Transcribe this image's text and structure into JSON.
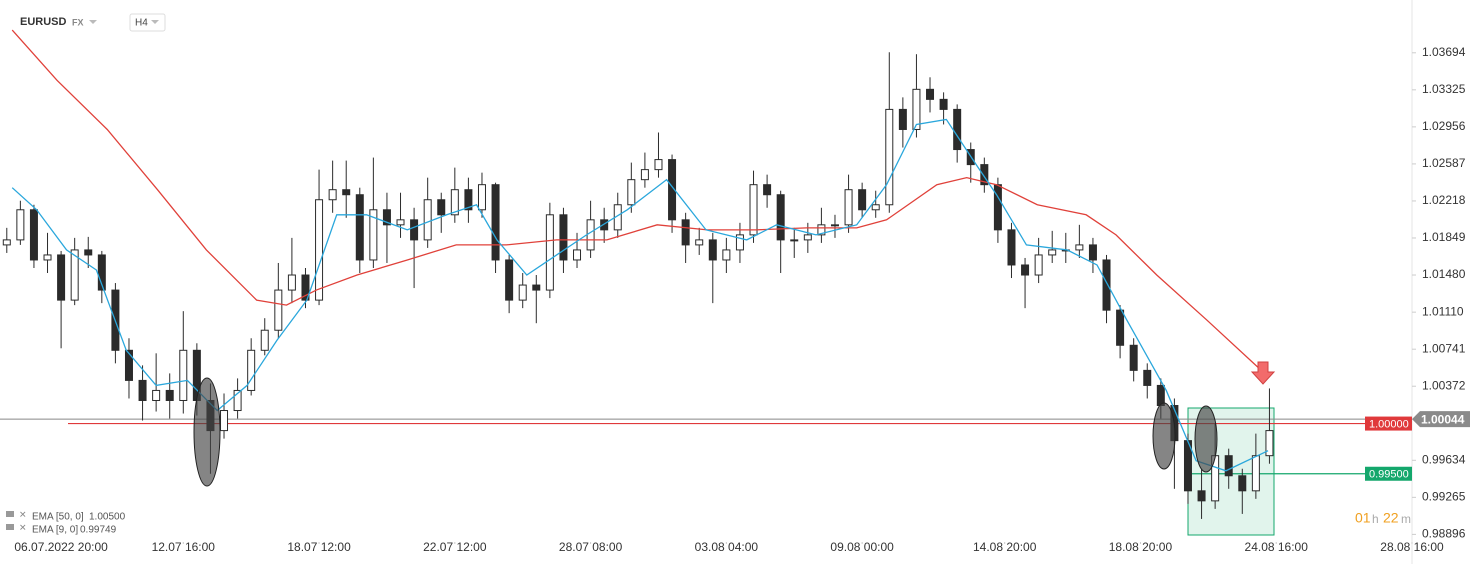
{
  "header": {
    "symbol": "EURUSD",
    "market": "FX",
    "interval": "H4"
  },
  "chart_data": {
    "type": "candlestick",
    "up_color": "#ffffff",
    "down_color": "#2b2b2b",
    "wick_color": "#2b2b2b",
    "x": [
      0,
      1,
      2,
      3,
      4,
      5,
      6,
      7,
      8,
      9,
      10,
      11,
      12,
      13,
      14,
      15,
      16,
      17,
      18,
      19,
      20,
      21,
      22,
      23,
      24,
      25,
      26,
      27,
      28,
      29,
      30,
      31,
      32,
      33,
      34,
      35,
      36,
      37,
      38,
      39,
      40,
      41,
      42,
      43,
      44,
      45,
      46,
      47,
      48,
      49,
      50,
      51,
      52,
      53,
      54,
      55,
      56,
      57,
      58,
      59,
      60,
      61,
      62,
      63,
      64,
      65,
      66,
      67,
      68,
      69,
      70,
      71,
      72,
      73,
      74,
      75,
      76,
      77,
      78,
      79,
      80,
      81,
      82,
      83,
      84,
      85,
      86,
      87,
      88,
      89,
      90,
      91,
      92,
      93
    ],
    "open": [
      1.0178,
      1.0183,
      1.0213,
      1.0163,
      1.0168,
      1.0123,
      1.0173,
      1.0168,
      1.0133,
      1.0073,
      1.0043,
      1.0023,
      1.0033,
      1.0023,
      1.0073,
      1.0023,
      0.9993,
      1.0013,
      1.0033,
      1.0073,
      1.0093,
      1.0133,
      1.0148,
      1.0123,
      1.0223,
      1.0233,
      1.0228,
      1.0163,
      1.0213,
      1.0198,
      1.0203,
      1.0183,
      1.0223,
      1.0208,
      1.0233,
      1.0213,
      1.0238,
      1.0163,
      1.0123,
      1.0138,
      1.0133,
      1.0208,
      1.0163,
      1.0173,
      1.0203,
      1.0193,
      1.0218,
      1.0243,
      1.0253,
      1.0263,
      1.0203,
      1.0178,
      1.0183,
      1.0163,
      1.0173,
      1.0188,
      1.0238,
      1.0228,
      1.0183,
      1.0183,
      1.0188,
      1.0198,
      1.0198,
      1.0233,
      1.0213,
      1.0218,
      1.0313,
      1.0293,
      1.0333,
      1.0323,
      1.0313,
      1.0273,
      1.0258,
      1.0238,
      1.0193,
      1.0158,
      1.0148,
      1.0168,
      1.0173,
      1.0173,
      1.0178,
      1.0163,
      1.0113,
      1.0078,
      1.0053,
      1.0038,
      1.0018,
      0.9983,
      0.9933,
      0.9923,
      0.9968,
      0.9948,
      0.9933,
      0.9968
    ],
    "high": [
      1.0195,
      1.0222,
      1.0218,
      1.019,
      1.0172,
      1.0185,
      1.0186,
      1.0172,
      1.014,
      1.0085,
      1.0058,
      1.007,
      1.005,
      1.0112,
      1.008,
      1.004,
      1.003,
      1.0045,
      1.0085,
      1.0105,
      1.016,
      1.0185,
      1.0155,
      1.0253,
      1.0262,
      1.0262,
      1.0235,
      1.0265,
      1.023,
      1.023,
      1.0215,
      1.0245,
      1.023,
      1.0255,
      1.0245,
      1.025,
      1.024,
      1.0168,
      1.015,
      1.0148,
      1.022,
      1.0215,
      1.019,
      1.0222,
      1.0215,
      1.023,
      1.026,
      1.027,
      1.029,
      1.0268,
      1.021,
      1.0195,
      1.019,
      1.0185,
      1.02,
      1.0252,
      1.0248,
      1.0232,
      1.0195,
      1.02,
      1.0215,
      1.0208,
      1.0248,
      1.024,
      1.0232,
      1.037,
      1.0325,
      1.0368,
      1.0345,
      1.033,
      1.0318,
      1.028,
      1.0265,
      1.0245,
      1.02,
      1.0165,
      1.0185,
      1.0192,
      1.019,
      1.0198,
      1.0185,
      1.0168,
      1.0118,
      1.0085,
      1.006,
      1.0045,
      1.0025,
      0.999,
      0.9955,
      1.0,
      0.9975,
      0.9955,
      0.999,
      1.0035
    ],
    "low": [
      1.017,
      1.0178,
      1.0155,
      1.015,
      1.0075,
      1.0118,
      1.0155,
      1.012,
      1.006,
      1.0025,
      1.0003,
      1.0012,
      1.0005,
      1.001,
      1.0008,
      0.995,
      0.9985,
      1.0005,
      1.0028,
      1.0068,
      1.0085,
      1.012,
      1.0115,
      1.0118,
      1.021,
      1.0205,
      1.015,
      1.0155,
      1.016,
      1.0185,
      1.0135,
      1.0175,
      1.019,
      1.02,
      1.02,
      1.0205,
      1.015,
      1.011,
      1.0115,
      1.01,
      1.0125,
      1.015,
      1.0155,
      1.0165,
      1.018,
      1.0185,
      1.021,
      1.0235,
      1.0245,
      1.019,
      1.016,
      1.0168,
      1.012,
      1.015,
      1.016,
      1.018,
      1.0215,
      1.015,
      1.0165,
      1.017,
      1.018,
      1.0185,
      1.019,
      1.0205,
      1.0205,
      1.021,
      1.0275,
      1.0285,
      1.031,
      1.0298,
      1.026,
      1.024,
      1.023,
      1.018,
      1.0145,
      1.0115,
      1.014,
      1.016,
      1.016,
      1.0165,
      1.015,
      1.01,
      1.0065,
      1.0042,
      1.0025,
      1.0005,
      0.9935,
      0.992,
      0.9905,
      0.9915,
      0.9935,
      0.991,
      0.9925,
      0.996
    ],
    "close": [
      1.0183,
      1.0213,
      1.0163,
      1.0168,
      1.0123,
      1.0173,
      1.0168,
      1.0133,
      1.0073,
      1.0043,
      1.0023,
      1.0033,
      1.0023,
      1.0073,
      1.0023,
      0.9993,
      1.0013,
      1.0033,
      1.0073,
      1.0093,
      1.0133,
      1.0148,
      1.0123,
      1.0223,
      1.0233,
      1.0228,
      1.0163,
      1.0213,
      1.0198,
      1.0203,
      1.0183,
      1.0223,
      1.0208,
      1.0233,
      1.0213,
      1.0238,
      1.0163,
      1.0123,
      1.0138,
      1.0133,
      1.0208,
      1.0163,
      1.0173,
      1.0203,
      1.0193,
      1.0218,
      1.0243,
      1.0253,
      1.0263,
      1.0203,
      1.0178,
      1.0183,
      1.0163,
      1.0173,
      1.0188,
      1.0238,
      1.0228,
      1.0183,
      1.0183,
      1.0188,
      1.0198,
      1.0198,
      1.0233,
      1.0213,
      1.0218,
      1.0313,
      1.0293,
      1.0333,
      1.0323,
      1.0313,
      1.0273,
      1.0258,
      1.0238,
      1.0193,
      1.0158,
      1.0148,
      1.0168,
      1.0173,
      1.0173,
      1.0178,
      1.0163,
      1.0113,
      1.0078,
      1.0053,
      1.0038,
      1.0018,
      0.9983,
      0.9933,
      0.9923,
      0.9968,
      0.9948,
      0.9933,
      0.9968,
      0.9993
    ],
    "series": [
      {
        "name": "EMA [50, 0]",
        "legend_value": "1.00500",
        "color": "#e0413a",
        "x": [
          0.4,
          3.7,
          7.4,
          11.1,
          14.7,
          18.4,
          20.6,
          22.8,
          25.8,
          29.5,
          33.1,
          36.8,
          40.5,
          44.2,
          47.9,
          51.6,
          55.2,
          58.9,
          62.6,
          64.8,
          68.5,
          70.7,
          72.9,
          75.9,
          79.5,
          81.7,
          84.7,
          88.4,
          92.8
        ],
        "values": [
          1.0392,
          1.0342,
          1.0293,
          1.0233,
          1.0173,
          1.0123,
          1.0118,
          1.0133,
          1.0148,
          1.0163,
          1.0178,
          1.0178,
          1.0183,
          1.0183,
          1.0198,
          1.0193,
          1.0193,
          1.0195,
          1.0195,
          1.0203,
          1.0238,
          1.0245,
          1.0238,
          1.0218,
          1.0208,
          1.0188,
          1.0148,
          1.0103,
          1.0048
        ]
      },
      {
        "name": "EMA [9, 0]",
        "legend_value": "0.99749",
        "color": "#2aa7dc",
        "x": [
          0.4,
          2.2,
          4.4,
          6.6,
          8.8,
          11.0,
          13.3,
          15.5,
          17.7,
          19.9,
          22.1,
          24.3,
          26.5,
          29.5,
          32.4,
          34.6,
          36.1,
          38.3,
          40.5,
          42.7,
          45.7,
          48.6,
          51.5,
          54.5,
          56.7,
          59.6,
          62.6,
          64.8,
          67.0,
          69.2,
          71.4,
          72.9,
          75.1,
          78.1,
          80.3,
          82.5,
          85.4,
          87.6,
          89.8,
          92.9
        ],
        "values": [
          1.0235,
          1.0213,
          1.0173,
          1.0153,
          1.0073,
          1.0038,
          1.0043,
          1.0013,
          1.0038,
          1.0083,
          1.0123,
          1.0208,
          1.0208,
          1.0193,
          1.0208,
          1.0218,
          1.0183,
          1.0148,
          1.0168,
          1.0188,
          1.0213,
          1.0243,
          1.0193,
          1.0183,
          1.0198,
          1.0188,
          1.0198,
          1.0238,
          1.0298,
          1.0303,
          1.0258,
          1.0228,
          1.0178,
          1.0173,
          1.0158,
          1.0103,
          1.0033,
          0.9963,
          0.9953,
          0.9973
        ]
      }
    ],
    "xlim": [
      -0.5,
      103.5
    ],
    "ylim": [
      0.9884,
      1.0422
    ],
    "xticks": [
      {
        "value": 4,
        "label": "06.07.2022 20:00"
      },
      {
        "value": 13,
        "label": "12.07 16:00"
      },
      {
        "value": 23,
        "label": "18.07 12:00"
      },
      {
        "value": 33,
        "label": "22.07 12:00"
      },
      {
        "value": 43,
        "label": "28.07 08:00"
      },
      {
        "value": 53,
        "label": "03.08 04:00"
      },
      {
        "value": 63,
        "label": "09.08 00:00"
      },
      {
        "value": 73.5,
        "label": "14.08 20:00"
      },
      {
        "value": 83.5,
        "label": "18.08 20:00"
      },
      {
        "value": 93.5,
        "label": "24.08 16:00"
      },
      {
        "value": 103.5,
        "label": "28.08 16:00"
      }
    ],
    "yticks": [
      1.03694,
      1.03325,
      1.02956,
      1.02587,
      1.02218,
      1.01849,
      {
        "value": 1.0148,
        "label": "1.01480"
      },
      {
        "value": 1.0111,
        "label": "1.01110"
      },
      1.00741,
      1.00372,
      0.99634,
      0.99265,
      0.98896
    ],
    "current_price": {
      "value": 1.00044,
      "label": "1.00044"
    },
    "levels": [
      {
        "value": 1.0,
        "label": "1.00000",
        "color": "#e0393b"
      },
      {
        "value": 0.995,
        "label": "0.99500",
        "color": "#14a76c"
      }
    ],
    "countdown": {
      "hours": "01",
      "h": "h",
      "minutes": "22",
      "m": "m"
    }
  }
}
